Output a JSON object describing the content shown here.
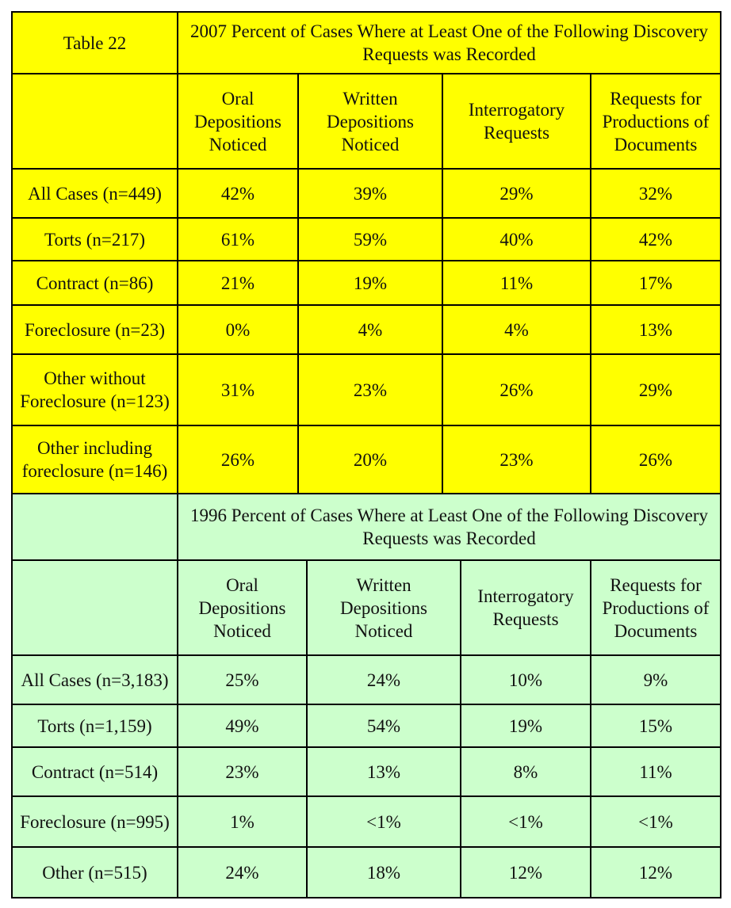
{
  "table_2007": {
    "table_label": "Table 22",
    "title": "2007 Percent of Cases Where at Least One of the Following Discovery Requests was Recorded",
    "columns": [
      "Oral Depositions Noticed",
      "Written Depositions Noticed",
      "Interrogatory Requests",
      "Requests for Productions of Documents"
    ],
    "rows": [
      {
        "label": "All Cases (n=449)",
        "values": [
          "42%",
          "39%",
          "29%",
          "32%"
        ]
      },
      {
        "label": "Torts (n=217)",
        "values": [
          "61%",
          "59%",
          "40%",
          "42%"
        ]
      },
      {
        "label": "Contract (n=86)",
        "values": [
          "21%",
          "19%",
          "11%",
          "17%"
        ]
      },
      {
        "label": "Foreclosure (n=23)",
        "values": [
          "0%",
          "4%",
          "4%",
          "13%"
        ]
      },
      {
        "label": "Other without Foreclosure (n=123)",
        "values": [
          "31%",
          "23%",
          "26%",
          "29%"
        ]
      },
      {
        "label": "Other including foreclosure (n=146)",
        "values": [
          "26%",
          "20%",
          "23%",
          "26%"
        ]
      }
    ]
  },
  "table_1996": {
    "title": "1996 Percent of Cases Where at Least One of the Following Discovery Requests was Recorded",
    "columns": [
      "Oral Depositions Noticed",
      "Written Depositions Noticed",
      "Interrogatory Requests",
      "Requests for Productions of Documents"
    ],
    "rows": [
      {
        "label": "All Cases (n=3,183)",
        "values": [
          "25%",
          "24%",
          "10%",
          "9%"
        ]
      },
      {
        "label": "Torts (n=1,159)",
        "values": [
          "49%",
          "54%",
          "19%",
          "15%"
        ]
      },
      {
        "label": "Contract (n=514)",
        "values": [
          "23%",
          "13%",
          "8%",
          "11%"
        ]
      },
      {
        "label": "Foreclosure (n=995)",
        "values": [
          "1%",
          "<1%",
          "<1%",
          "<1%"
        ]
      },
      {
        "label": "Other (n=515)",
        "values": [
          "24%",
          "18%",
          "12%",
          "12%"
        ]
      }
    ]
  },
  "colors": {
    "table_2007_bg": "#ffff00",
    "table_1996_bg": "#ccffcc",
    "border": "#000000"
  }
}
